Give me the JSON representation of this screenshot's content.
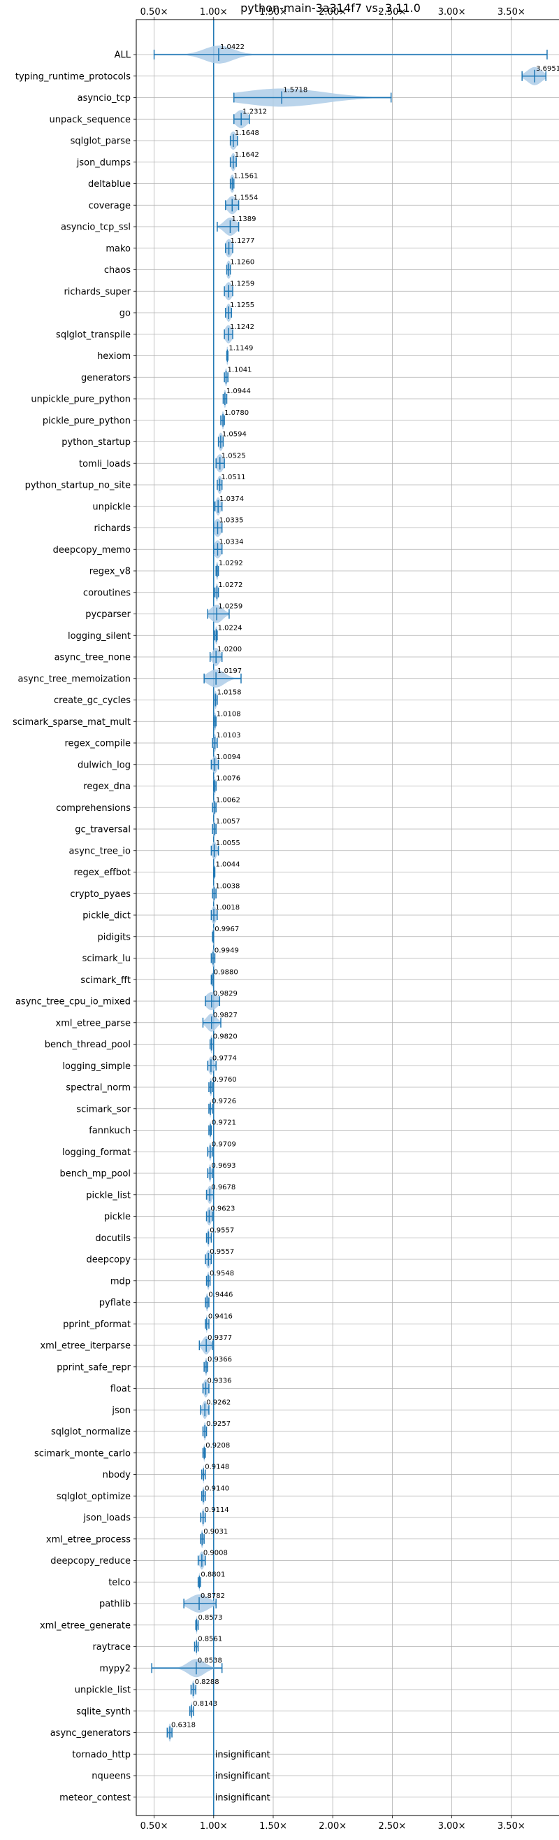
{
  "chart_data": {
    "type": "violin",
    "title": "python-main-3a314f7 vs. 3.11.0",
    "xlabel": "",
    "ylabel": "",
    "xlim": [
      0.35,
      3.9
    ],
    "reference_line": 1.0,
    "grid": true,
    "color": "#1f77b4",
    "violin_color": "#aecde7",
    "x_ticks": [
      {
        "value": 0.5,
        "label": "0.50×"
      },
      {
        "value": 1.0,
        "label": "1.00×"
      },
      {
        "value": 1.5,
        "label": "1.50×"
      },
      {
        "value": 2.0,
        "label": "2.00×"
      },
      {
        "value": 2.5,
        "label": "2.50×"
      },
      {
        "value": 3.0,
        "label": "3.00×"
      },
      {
        "value": 3.5,
        "label": "3.50×"
      }
    ],
    "benchmarks": [
      {
        "name": "ALL",
        "label": "1.0422",
        "mean": 1.0422,
        "min": 0.5,
        "max": 3.8,
        "spread": 0.12
      },
      {
        "name": "typing_runtime_protocols",
        "label": "3.6951",
        "mean": 3.6951,
        "min": 3.59,
        "max": 3.79,
        "spread": 0.06
      },
      {
        "name": "asyncio_tcp",
        "label": "1.5718",
        "mean": 1.5718,
        "min": 1.17,
        "max": 2.49,
        "spread": 0.35
      },
      {
        "name": "unpack_sequence",
        "label": "1.2312",
        "mean": 1.2312,
        "min": 1.17,
        "max": 1.3,
        "spread": 0.05
      },
      {
        "name": "sqlglot_parse",
        "label": "1.1648",
        "mean": 1.1648,
        "min": 1.14,
        "max": 1.2,
        "spread": 0.03
      },
      {
        "name": "json_dumps",
        "label": "1.1642",
        "mean": 1.1642,
        "min": 1.14,
        "max": 1.19,
        "spread": 0.02
      },
      {
        "name": "deltablue",
        "label": "1.1561",
        "mean": 1.1561,
        "min": 1.14,
        "max": 1.17,
        "spread": 0.02
      },
      {
        "name": "coverage",
        "label": "1.1554",
        "mean": 1.1554,
        "min": 1.1,
        "max": 1.21,
        "spread": 0.04
      },
      {
        "name": "asyncio_tcp_ssl",
        "label": "1.1389",
        "mean": 1.1389,
        "min": 1.03,
        "max": 1.21,
        "spread": 0.05
      },
      {
        "name": "mako",
        "label": "1.1277",
        "mean": 1.1277,
        "min": 1.1,
        "max": 1.16,
        "spread": 0.03
      },
      {
        "name": "chaos",
        "label": "1.1260",
        "mean": 1.126,
        "min": 1.11,
        "max": 1.14,
        "spread": 0.02
      },
      {
        "name": "richards_super",
        "label": "1.1259",
        "mean": 1.1259,
        "min": 1.09,
        "max": 1.16,
        "spread": 0.03
      },
      {
        "name": "go",
        "label": "1.1255",
        "mean": 1.1255,
        "min": 1.1,
        "max": 1.15,
        "spread": 0.02
      },
      {
        "name": "sqlglot_transpile",
        "label": "1.1242",
        "mean": 1.1242,
        "min": 1.09,
        "max": 1.16,
        "spread": 0.03
      },
      {
        "name": "hexiom",
        "label": "1.1149",
        "mean": 1.1149,
        "min": 1.11,
        "max": 1.12,
        "spread": 0.01
      },
      {
        "name": "generators",
        "label": "1.1041",
        "mean": 1.1041,
        "min": 1.09,
        "max": 1.12,
        "spread": 0.01
      },
      {
        "name": "unpickle_pure_python",
        "label": "1.0944",
        "mean": 1.0944,
        "min": 1.08,
        "max": 1.11,
        "spread": 0.01
      },
      {
        "name": "pickle_pure_python",
        "label": "1.0780",
        "mean": 1.078,
        "min": 1.06,
        "max": 1.09,
        "spread": 0.01
      },
      {
        "name": "python_startup",
        "label": "1.0594",
        "mean": 1.0594,
        "min": 1.04,
        "max": 1.08,
        "spread": 0.02
      },
      {
        "name": "tomli_loads",
        "label": "1.0525",
        "mean": 1.0525,
        "min": 1.02,
        "max": 1.09,
        "spread": 0.03
      },
      {
        "name": "python_startup_no_site",
        "label": "1.0511",
        "mean": 1.0511,
        "min": 1.03,
        "max": 1.07,
        "spread": 0.02
      },
      {
        "name": "unpickle",
        "label": "1.0374",
        "mean": 1.0374,
        "min": 1.01,
        "max": 1.07,
        "spread": 0.02
      },
      {
        "name": "richards",
        "label": "1.0335",
        "mean": 1.0335,
        "min": 1.0,
        "max": 1.07,
        "spread": 0.03
      },
      {
        "name": "deepcopy_memo",
        "label": "1.0334",
        "mean": 1.0334,
        "min": 1.0,
        "max": 1.07,
        "spread": 0.03
      },
      {
        "name": "regex_v8",
        "label": "1.0292",
        "mean": 1.0292,
        "min": 1.02,
        "max": 1.04,
        "spread": 0.01
      },
      {
        "name": "coroutines",
        "label": "1.0272",
        "mean": 1.0272,
        "min": 1.01,
        "max": 1.04,
        "spread": 0.01
      },
      {
        "name": "pycparser",
        "label": "1.0259",
        "mean": 1.0259,
        "min": 0.95,
        "max": 1.13,
        "spread": 0.05
      },
      {
        "name": "logging_silent",
        "label": "1.0224",
        "mean": 1.0224,
        "min": 1.01,
        "max": 1.03,
        "spread": 0.01
      },
      {
        "name": "async_tree_none",
        "label": "1.0200",
        "mean": 1.02,
        "min": 0.97,
        "max": 1.07,
        "spread": 0.03
      },
      {
        "name": "async_tree_memoization",
        "label": "1.0197",
        "mean": 1.0197,
        "min": 0.92,
        "max": 1.23,
        "spread": 0.07
      },
      {
        "name": "create_gc_cycles",
        "label": "1.0158",
        "mean": 1.0158,
        "min": 1.0,
        "max": 1.03,
        "spread": 0.01
      },
      {
        "name": "scimark_sparse_mat_mult",
        "label": "1.0108",
        "mean": 1.0108,
        "min": 1.0,
        "max": 1.02,
        "spread": 0.01
      },
      {
        "name": "regex_compile",
        "label": "1.0103",
        "mean": 1.0103,
        "min": 0.99,
        "max": 1.03,
        "spread": 0.01
      },
      {
        "name": "dulwich_log",
        "label": "1.0094",
        "mean": 1.0094,
        "min": 0.98,
        "max": 1.04,
        "spread": 0.02
      },
      {
        "name": "regex_dna",
        "label": "1.0076",
        "mean": 1.0076,
        "min": 1.0,
        "max": 1.02,
        "spread": 0.01
      },
      {
        "name": "comprehensions",
        "label": "1.0062",
        "mean": 1.0062,
        "min": 0.99,
        "max": 1.02,
        "spread": 0.01
      },
      {
        "name": "gc_traversal",
        "label": "1.0057",
        "mean": 1.0057,
        "min": 0.99,
        "max": 1.02,
        "spread": 0.01
      },
      {
        "name": "async_tree_io",
        "label": "1.0055",
        "mean": 1.0055,
        "min": 0.98,
        "max": 1.04,
        "spread": 0.02
      },
      {
        "name": "regex_effbot",
        "label": "1.0044",
        "mean": 1.0044,
        "min": 1.0,
        "max": 1.01,
        "spread": 0.005
      },
      {
        "name": "crypto_pyaes",
        "label": "1.0038",
        "mean": 1.0038,
        "min": 0.99,
        "max": 1.02,
        "spread": 0.01
      },
      {
        "name": "pickle_dict",
        "label": "1.0018",
        "mean": 1.0018,
        "min": 0.98,
        "max": 1.03,
        "spread": 0.02
      },
      {
        "name": "pidigits",
        "label": "0.9967",
        "mean": 0.9967,
        "min": 0.99,
        "max": 1.0,
        "spread": 0.005
      },
      {
        "name": "scimark_lu",
        "label": "0.9949",
        "mean": 0.9949,
        "min": 0.98,
        "max": 1.01,
        "spread": 0.01
      },
      {
        "name": "scimark_fft",
        "label": "0.9880",
        "mean": 0.988,
        "min": 0.98,
        "max": 1.0,
        "spread": 0.005
      },
      {
        "name": "async_tree_cpu_io_mixed",
        "label": "0.9829",
        "mean": 0.9829,
        "min": 0.93,
        "max": 1.05,
        "spread": 0.05
      },
      {
        "name": "xml_etree_parse",
        "label": "0.9827",
        "mean": 0.9827,
        "min": 0.91,
        "max": 1.06,
        "spread": 0.04
      },
      {
        "name": "bench_thread_pool",
        "label": "0.9820",
        "mean": 0.982,
        "min": 0.97,
        "max": 1.0,
        "spread": 0.01
      },
      {
        "name": "logging_simple",
        "label": "0.9774",
        "mean": 0.9774,
        "min": 0.95,
        "max": 1.02,
        "spread": 0.02
      },
      {
        "name": "spectral_norm",
        "label": "0.9760",
        "mean": 0.976,
        "min": 0.96,
        "max": 0.99,
        "spread": 0.01
      },
      {
        "name": "scimark_sor",
        "label": "0.9726",
        "mean": 0.9726,
        "min": 0.96,
        "max": 0.99,
        "spread": 0.005
      },
      {
        "name": "fannkuch",
        "label": "0.9721",
        "mean": 0.9721,
        "min": 0.96,
        "max": 0.98,
        "spread": 0.005
      },
      {
        "name": "logging_format",
        "label": "0.9709",
        "mean": 0.9709,
        "min": 0.95,
        "max": 0.99,
        "spread": 0.01
      },
      {
        "name": "bench_mp_pool",
        "label": "0.9693",
        "mean": 0.9693,
        "min": 0.95,
        "max": 0.99,
        "spread": 0.01
      },
      {
        "name": "pickle_list",
        "label": "0.9678",
        "mean": 0.9678,
        "min": 0.94,
        "max": 1.0,
        "spread": 0.02
      },
      {
        "name": "pickle",
        "label": "0.9623",
        "mean": 0.9623,
        "min": 0.94,
        "max": 0.99,
        "spread": 0.02
      },
      {
        "name": "docutils",
        "label": "0.9557",
        "mean": 0.9557,
        "min": 0.94,
        "max": 0.98,
        "spread": 0.01
      },
      {
        "name": "deepcopy",
        "label": "0.9557",
        "mean": 0.9557,
        "min": 0.93,
        "max": 0.98,
        "spread": 0.02
      },
      {
        "name": "mdp",
        "label": "0.9548",
        "mean": 0.9548,
        "min": 0.94,
        "max": 0.97,
        "spread": 0.01
      },
      {
        "name": "pyflate",
        "label": "0.9446",
        "mean": 0.9446,
        "min": 0.93,
        "max": 0.96,
        "spread": 0.01
      },
      {
        "name": "pprint_pformat",
        "label": "0.9416",
        "mean": 0.9416,
        "min": 0.93,
        "max": 0.96,
        "spread": 0.005
      },
      {
        "name": "xml_etree_iterparse",
        "label": "0.9377",
        "mean": 0.9377,
        "min": 0.88,
        "max": 0.99,
        "spread": 0.03
      },
      {
        "name": "pprint_safe_repr",
        "label": "0.9366",
        "mean": 0.9366,
        "min": 0.92,
        "max": 0.95,
        "spread": 0.01
      },
      {
        "name": "float",
        "label": "0.9336",
        "mean": 0.9336,
        "min": 0.91,
        "max": 0.96,
        "spread": 0.02
      },
      {
        "name": "json",
        "label": "0.9262",
        "mean": 0.9262,
        "min": 0.89,
        "max": 0.96,
        "spread": 0.02
      },
      {
        "name": "sqlglot_normalize",
        "label": "0.9257",
        "mean": 0.9257,
        "min": 0.91,
        "max": 0.94,
        "spread": 0.01
      },
      {
        "name": "scimark_monte_carlo",
        "label": "0.9208",
        "mean": 0.9208,
        "min": 0.91,
        "max": 0.93,
        "spread": 0.005
      },
      {
        "name": "nbody",
        "label": "0.9148",
        "mean": 0.9148,
        "min": 0.9,
        "max": 0.93,
        "spread": 0.005
      },
      {
        "name": "sqlglot_optimize",
        "label": "0.9140",
        "mean": 0.914,
        "min": 0.9,
        "max": 0.93,
        "spread": 0.01
      },
      {
        "name": "json_loads",
        "label": "0.9114",
        "mean": 0.9114,
        "min": 0.89,
        "max": 0.93,
        "spread": 0.01
      },
      {
        "name": "xml_etree_process",
        "label": "0.9031",
        "mean": 0.9031,
        "min": 0.89,
        "max": 0.92,
        "spread": 0.01
      },
      {
        "name": "deepcopy_reduce",
        "label": "0.9008",
        "mean": 0.9008,
        "min": 0.87,
        "max": 0.93,
        "spread": 0.02
      },
      {
        "name": "telco",
        "label": "0.8801",
        "mean": 0.8801,
        "min": 0.87,
        "max": 0.89,
        "spread": 0.005
      },
      {
        "name": "pathlib",
        "label": "0.8782",
        "mean": 0.8782,
        "min": 0.75,
        "max": 1.02,
        "spread": 0.08
      },
      {
        "name": "xml_etree_generate",
        "label": "0.8573",
        "mean": 0.8573,
        "min": 0.85,
        "max": 0.87,
        "spread": 0.005
      },
      {
        "name": "raytrace",
        "label": "0.8561",
        "mean": 0.8561,
        "min": 0.84,
        "max": 0.87,
        "spread": 0.005
      },
      {
        "name": "mypy2",
        "label": "0.8538",
        "mean": 0.8538,
        "min": 0.48,
        "max": 1.07,
        "spread": 0.07
      },
      {
        "name": "unpickle_list",
        "label": "0.8288",
        "mean": 0.8288,
        "min": 0.81,
        "max": 0.85,
        "spread": 0.01
      },
      {
        "name": "sqlite_synth",
        "label": "0.8143",
        "mean": 0.8143,
        "min": 0.8,
        "max": 0.83,
        "spread": 0.005
      },
      {
        "name": "async_generators",
        "label": "0.6318",
        "mean": 0.6318,
        "min": 0.61,
        "max": 0.65,
        "spread": 0.01
      },
      {
        "name": "tornado_http",
        "label": "insignificant",
        "insignificant": true
      },
      {
        "name": "nqueens",
        "label": "insignificant",
        "insignificant": true
      },
      {
        "name": "meteor_contest",
        "label": "insignificant",
        "insignificant": true
      }
    ]
  }
}
